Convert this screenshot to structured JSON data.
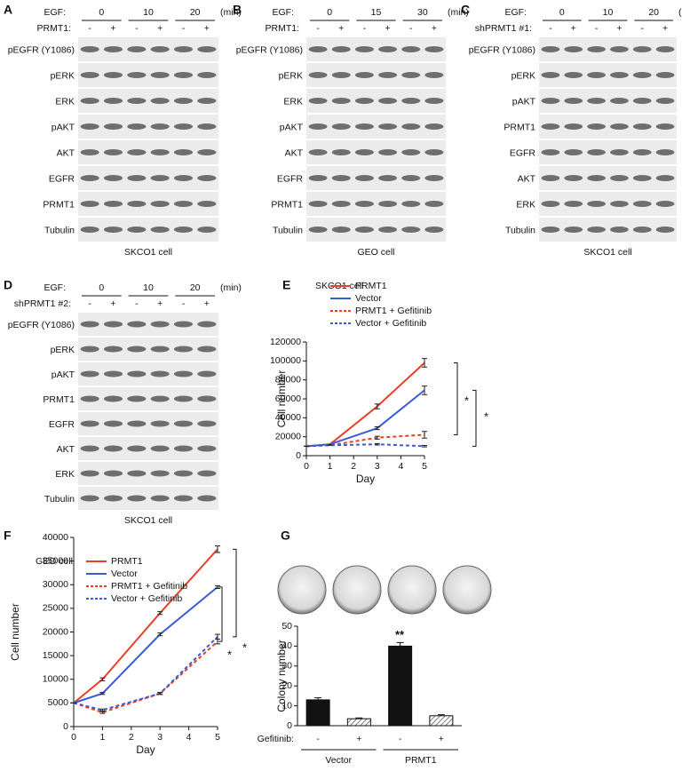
{
  "blots": [
    {
      "panel": "A",
      "header_label": "EGF:",
      "times": [
        "0",
        "10",
        "20"
      ],
      "unit": "(min)",
      "treatment_label": "PRMT1:",
      "signs": [
        "-",
        "+",
        "-",
        "+",
        "-",
        "+"
      ],
      "rows": [
        "pEGFR (Y1086)",
        "pERK",
        "ERK",
        "pAKT",
        "AKT",
        "EGFR",
        "PRMT1",
        "Tubulin"
      ],
      "caption": "SKCO1 cell"
    },
    {
      "panel": "B",
      "header_label": "EGF:",
      "times": [
        "0",
        "15",
        "30"
      ],
      "unit": "(min)",
      "treatment_label": "PRMT1:",
      "signs": [
        "-",
        "+",
        "-",
        "+",
        "-",
        "+"
      ],
      "rows": [
        "pEGFR (Y1086)",
        "pERK",
        "ERK",
        "pAKT",
        "AKT",
        "EGFR",
        "PRMT1",
        "Tubulin"
      ],
      "caption": "GEO cell"
    },
    {
      "panel": "C",
      "header_label": "EGF:",
      "times": [
        "0",
        "10",
        "20"
      ],
      "unit": "(min)",
      "treatment_label": "shPRMT1 #1:",
      "signs": [
        "-",
        "+",
        "-",
        "+",
        "-",
        "+"
      ],
      "rows": [
        "pEGFR (Y1086)",
        "pERK",
        "pAKT",
        "PRMT1",
        "EGFR",
        "AKT",
        "ERK",
        "Tubulin"
      ],
      "caption": "SKCO1 cell"
    },
    {
      "panel": "D",
      "header_label": "EGF:",
      "times": [
        "0",
        "10",
        "20"
      ],
      "unit": "(min)",
      "treatment_label": "shPRMT1 #2:",
      "signs": [
        "-",
        "+",
        "-",
        "+",
        "-",
        "+"
      ],
      "rows": [
        "pEGFR (Y1086)",
        "pERK",
        "pAKT",
        "PRMT1",
        "EGFR",
        "AKT",
        "ERK",
        "Tubulin"
      ],
      "caption": "SKCO1 cell"
    }
  ],
  "chart_data": [
    {
      "type": "line",
      "panel": "E",
      "subtitle": "SKCO1 cell",
      "x_label": "Day",
      "y_label": "Cell number",
      "x": [
        0,
        1,
        3,
        5
      ],
      "xlim": [
        0,
        5
      ],
      "xticks": [
        0,
        1,
        2,
        3,
        4,
        5
      ],
      "ylim": [
        0,
        120000
      ],
      "yticks": [
        0,
        20000,
        40000,
        60000,
        80000,
        100000,
        120000
      ],
      "series": [
        {
          "name": "PRMT1",
          "color": "#e8412a",
          "dashed": false,
          "values": [
            10000,
            12000,
            52000,
            98000
          ],
          "errors": [
            0,
            0,
            2500,
            4500
          ]
        },
        {
          "name": "Vector",
          "color": "#3b5bd6",
          "dashed": false,
          "values": [
            10000,
            12000,
            29000,
            69000
          ],
          "errors": [
            0,
            0,
            1500,
            4500
          ]
        },
        {
          "name": "PRMT1 + Gefitinib",
          "color": "#e8412a",
          "dashed": true,
          "values": [
            10000,
            11000,
            19000,
            22000
          ],
          "errors": [
            0,
            0,
            1500,
            3500
          ]
        },
        {
          "name": "Vector + Gefitinib",
          "color": "#3b5bd6",
          "dashed": true,
          "values": [
            10000,
            11000,
            12000,
            10000
          ],
          "errors": [
            0,
            0,
            800,
            800
          ]
        }
      ],
      "annotations": [
        "*",
        "*"
      ]
    },
    {
      "type": "line",
      "panel": "F",
      "subtitle": "GEO cell",
      "x_label": "Day",
      "y_label": "Cell number",
      "x": [
        0,
        1,
        3,
        5
      ],
      "xlim": [
        0,
        5
      ],
      "xticks": [
        0,
        1,
        2,
        3,
        4,
        5
      ],
      "ylim": [
        0,
        40000
      ],
      "yticks": [
        0,
        5000,
        10000,
        15000,
        20000,
        25000,
        30000,
        35000,
        40000
      ],
      "series": [
        {
          "name": "PRMT1",
          "color": "#e8412a",
          "dashed": false,
          "values": [
            5000,
            10000,
            24000,
            37500
          ],
          "errors": [
            0,
            300,
            300,
            700
          ]
        },
        {
          "name": "Vector",
          "color": "#3b5bd6",
          "dashed": false,
          "values": [
            5000,
            7000,
            19500,
            29500
          ],
          "errors": [
            0,
            200,
            300,
            300
          ]
        },
        {
          "name": "PRMT1 + Gefitinib",
          "color": "#e8412a",
          "dashed": true,
          "values": [
            5000,
            3000,
            7000,
            18000
          ],
          "errors": [
            0,
            200,
            200,
            500
          ]
        },
        {
          "name": "Vector + Gefitinib",
          "color": "#3b5bd6",
          "dashed": true,
          "values": [
            5000,
            3500,
            7000,
            19000
          ],
          "errors": [
            0,
            200,
            200,
            500
          ]
        }
      ],
      "annotations": [
        "*",
        "*"
      ]
    },
    {
      "type": "bar",
      "panel": "G",
      "y_label": "Colony number",
      "values": [
        13,
        3.5,
        40,
        5
      ],
      "errors": [
        1,
        0.4,
        1.8,
        0.5
      ],
      "colors": [
        "#111111",
        "#ffffff",
        "#111111",
        "#ffffff"
      ],
      "hatched": [
        false,
        true,
        false,
        true
      ],
      "ylim": [
        0,
        50
      ],
      "yticks": [
        0,
        10,
        20,
        30,
        40,
        50
      ],
      "treatment_label": "Gefitinib:",
      "signs": [
        "-",
        "+",
        "-",
        "+"
      ],
      "groups": [
        "Vector",
        "PRMT1"
      ],
      "annotations": [
        "**"
      ]
    }
  ]
}
